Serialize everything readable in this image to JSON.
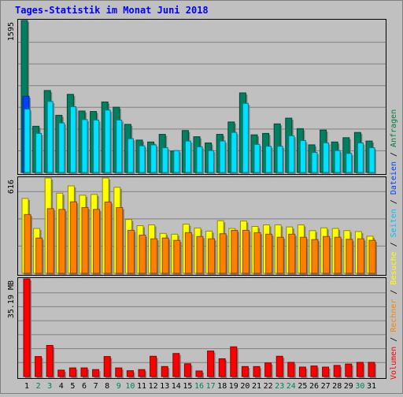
{
  "title": "Tages-Statistik im Monat Juni 2018",
  "legend": [
    {
      "label": "Anfragen",
      "color": "#008040"
    },
    {
      "label": "Dateien",
      "color": "#0040ff"
    },
    {
      "label": "Seiten",
      "color": "#00c0ff"
    },
    {
      "label": "Besuche",
      "color": "#ffff00"
    },
    {
      "label": "Rechner",
      "color": "#ff8000"
    },
    {
      "label": "Volumen",
      "color": "#ff0000"
    }
  ],
  "separator": "/",
  "colors": {
    "background": "#c0c0c0",
    "frame": "#000000",
    "gridline": "#808080",
    "title": "#0000ff",
    "weekend_label": "#00805c",
    "anfragen": "#008060",
    "dateien": "#0040ff",
    "seiten": "#00e0ff",
    "besuche": "#ffff00",
    "rechner": "#ff8000",
    "volumen": "#ff0000"
  },
  "chart_data": [
    {
      "type": "bar",
      "title": "Tages-Statistik im Monat Juni 2018",
      "ylabel": "1595",
      "ylim": [
        0,
        1595
      ],
      "grid": true,
      "categories": [
        "1",
        "2",
        "3",
        "4",
        "5",
        "6",
        "7",
        "8",
        "9",
        "10",
        "11",
        "12",
        "13",
        "14",
        "15",
        "16",
        "17",
        "18",
        "19",
        "20",
        "21",
        "22",
        "23",
        "24",
        "25",
        "26",
        "27",
        "28",
        "29",
        "30",
        "31"
      ],
      "weekend_days": [
        "2",
        "3",
        "9",
        "10",
        "16",
        "17",
        "23",
        "24",
        "30"
      ],
      "series": [
        {
          "name": "Anfragen",
          "values": [
            1595,
            485,
            860,
            600,
            820,
            645,
            640,
            740,
            685,
            505,
            340,
            320,
            400,
            225,
            440,
            375,
            310,
            400,
            530,
            835,
            395,
            410,
            510,
            570,
            460,
            290,
            445,
            320,
            365,
            420,
            330
          ]
        },
        {
          "name": "Dateien",
          "values": [
            800,
            0,
            0,
            0,
            0,
            0,
            0,
            0,
            0,
            0,
            0,
            0,
            0,
            0,
            0,
            0,
            0,
            0,
            0,
            0,
            0,
            0,
            0,
            0,
            0,
            0,
            0,
            0,
            0,
            0,
            0
          ]
        },
        {
          "name": "Seiten",
          "values": [
            665,
            410,
            745,
            520,
            690,
            555,
            550,
            655,
            550,
            355,
            280,
            290,
            260,
            230,
            330,
            270,
            230,
            330,
            420,
            725,
            295,
            275,
            275,
            385,
            335,
            210,
            310,
            230,
            200,
            310,
            260
          ]
        }
      ]
    },
    {
      "type": "bar",
      "ylabel": "616",
      "ylim": [
        0,
        616
      ],
      "grid": true,
      "categories": [
        "1",
        "2",
        "3",
        "4",
        "5",
        "6",
        "7",
        "8",
        "9",
        "10",
        "11",
        "12",
        "13",
        "14",
        "15",
        "16",
        "17",
        "18",
        "19",
        "20",
        "21",
        "22",
        "23",
        "24",
        "25",
        "26",
        "27",
        "28",
        "29",
        "30",
        "31"
      ],
      "series": [
        {
          "name": "Besuche",
          "values": [
            484,
            290,
            616,
            518,
            565,
            505,
            510,
            616,
            556,
            348,
            308,
            313,
            258,
            253,
            318,
            293,
            273,
            340,
            290,
            338,
            303,
            313,
            313,
            300,
            313,
            276,
            294,
            290,
            276,
            270,
            240
          ]
        },
        {
          "name": "Rechner",
          "values": [
            380,
            228,
            418,
            413,
            462,
            425,
            413,
            461,
            425,
            278,
            247,
            223,
            228,
            213,
            263,
            238,
            223,
            256,
            278,
            278,
            263,
            253,
            233,
            253,
            233,
            218,
            238,
            233,
            220,
            223,
            213
          ]
        }
      ]
    },
    {
      "type": "bar",
      "ylabel": "35.19 MB",
      "ylim": [
        0,
        35.19
      ],
      "grid": true,
      "categories": [
        "1",
        "2",
        "3",
        "4",
        "5",
        "6",
        "7",
        "8",
        "9",
        "10",
        "11",
        "12",
        "13",
        "14",
        "15",
        "16",
        "17",
        "18",
        "19",
        "20",
        "21",
        "22",
        "23",
        "24",
        "25",
        "26",
        "27",
        "28",
        "29",
        "30",
        "31"
      ],
      "series": [
        {
          "name": "Volumen",
          "values": [
            35.19,
            7.2,
            11.2,
            2.3,
            3.1,
            3.1,
            2.5,
            7.2,
            3.1,
            2.1,
            2.5,
            7.3,
            3.6,
            8.3,
            4.6,
            2.0,
            9.2,
            6.4,
            10.7,
            3.6,
            3.6,
            4.9,
            7.3,
            5.1,
            3.4,
            3.8,
            3.4,
            4.0,
            4.5,
            5.1,
            5.1
          ]
        }
      ]
    }
  ]
}
